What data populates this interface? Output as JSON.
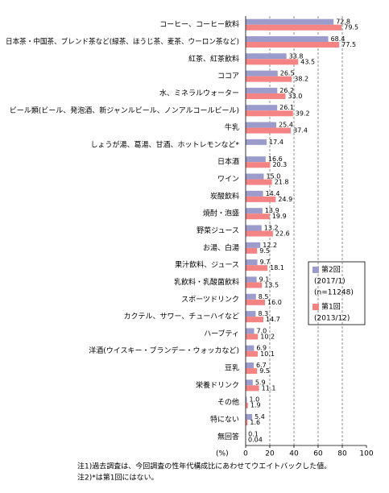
{
  "chart_data": {
    "type": "bar",
    "orientation": "horizontal",
    "categories": [
      "コーヒー、コーヒー飲料",
      "日本茶・中国茶、ブレンド茶など(緑茶、ほうじ茶、麦茶、ウーロン茶など)",
      "紅茶、紅茶飲料",
      "ココア",
      "水、ミネラルウォーター",
      "ビール類(ビール、発泡酒、新ジャンルビール、ノンアルコールビール)",
      "牛乳",
      "しょうが湯、葛湯、甘酒、ホットレモンなど*",
      "日本酒",
      "ワイン",
      "炭酸飲料",
      "焼酎・泡盛",
      "野菜ジュース",
      "お湯、白湯",
      "果汁飲料、ジュース",
      "乳飲料・乳酸菌飲料",
      "スポーツドリンク",
      "カクテル、サワー、チューハイなど",
      "ハーブティ",
      "洋酒(ウイスキー・ブランデー・ウォッカなど)",
      "豆乳",
      "栄養ドリンク",
      "その他",
      "特にない",
      "無回答"
    ],
    "series": [
      {
        "name": "第2回",
        "legend_note": [
          "(2017/1)",
          "(n=11248)"
        ],
        "color": "#9c9ccc",
        "values": [
          72.8,
          68.4,
          33.8,
          26.5,
          26.2,
          26.1,
          25.4,
          17.4,
          16.6,
          15.0,
          14.4,
          13.9,
          13.2,
          12.2,
          9.7,
          9.1,
          8.5,
          8.3,
          7.0,
          6.9,
          6.7,
          5.9,
          1.0,
          5.4,
          0.1
        ],
        "value_labels": [
          "72.8",
          "68.4",
          "33.8",
          "26.5",
          "26.2",
          "26.1",
          "25.4",
          "17.4",
          "16.6",
          "15.0",
          "14.4",
          "13.9",
          "13.2",
          "12.2",
          "9.7",
          "9.1",
          "8.5",
          "8.3",
          "7.0",
          "6.9",
          "6.7",
          "5.9",
          "1.0",
          "5.4",
          "0.1"
        ]
      },
      {
        "name": "第1回",
        "legend_note": [
          "(2013/12)"
        ],
        "color": "#f48484",
        "values": [
          79.5,
          77.5,
          43.5,
          38.2,
          33.0,
          39.2,
          37.4,
          null,
          20.3,
          21.8,
          24.9,
          19.9,
          22.6,
          9.5,
          18.1,
          13.5,
          16.0,
          14.7,
          10.2,
          10.1,
          9.5,
          11.1,
          1.9,
          1.6,
          0.04
        ],
        "value_labels": [
          "79.5",
          "77.5",
          "43.5",
          "38.2",
          "33.0",
          "39.2",
          "37.4",
          null,
          "20.3",
          "21.8",
          "24.9",
          "19.9",
          "22.6",
          "9.5",
          "18.1",
          "13.5",
          "16.0",
          "14.7",
          "10.2",
          "10.1",
          "9.5",
          "11.1",
          "1.9",
          "1.6",
          "0.04"
        ]
      }
    ],
    "xlim": [
      0,
      100
    ],
    "xticks": [
      0,
      20,
      40,
      60,
      80,
      100
    ],
    "x_axis_label": "(%)",
    "grid": true,
    "legend_position": "right",
    "notes": [
      "注1)過去調査は、今回調査の性年代構成比にあわせてウエイトバックした値。",
      "注2)*は第1回にはない。"
    ]
  }
}
